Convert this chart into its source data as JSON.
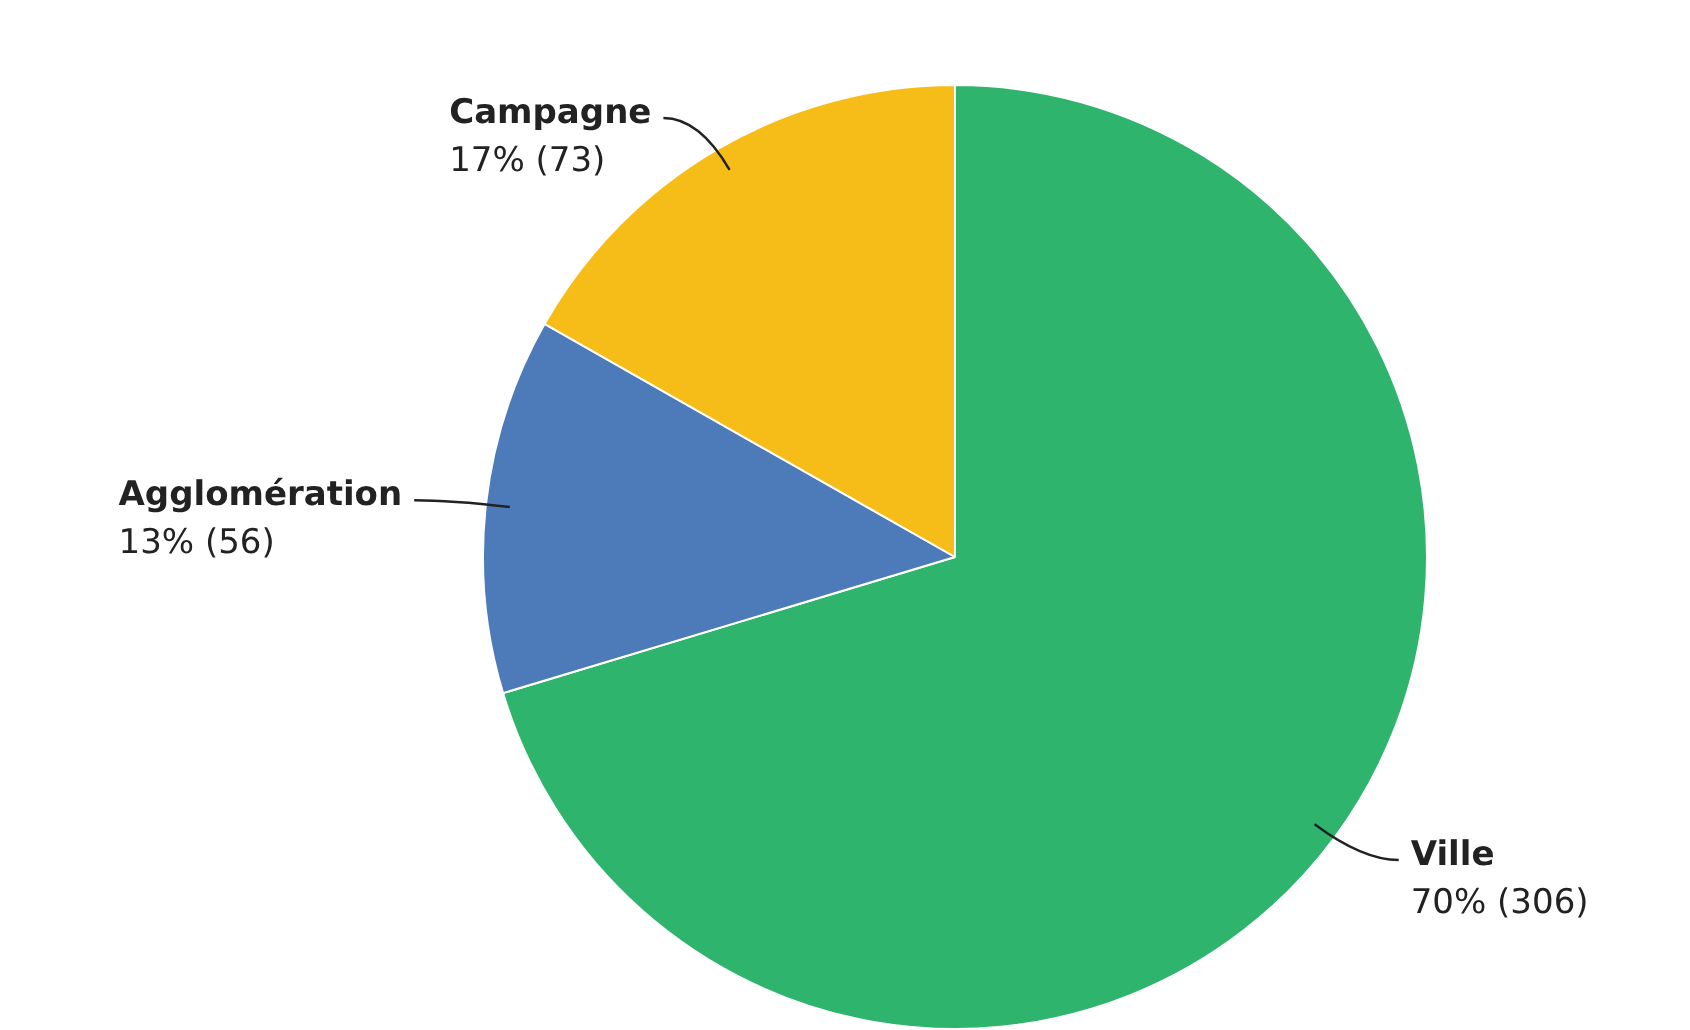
{
  "chart_data": {
    "type": "pie",
    "categories": [
      "Ville",
      "Agglomération",
      "Campagne"
    ],
    "values": [
      306,
      56,
      73
    ],
    "colors": [
      "#2eb46d",
      "#4d7bba",
      "#f6bd19"
    ],
    "value_labels": [
      "70% (306)",
      "13% (56)",
      "17% (73)"
    ],
    "legend": false
  }
}
